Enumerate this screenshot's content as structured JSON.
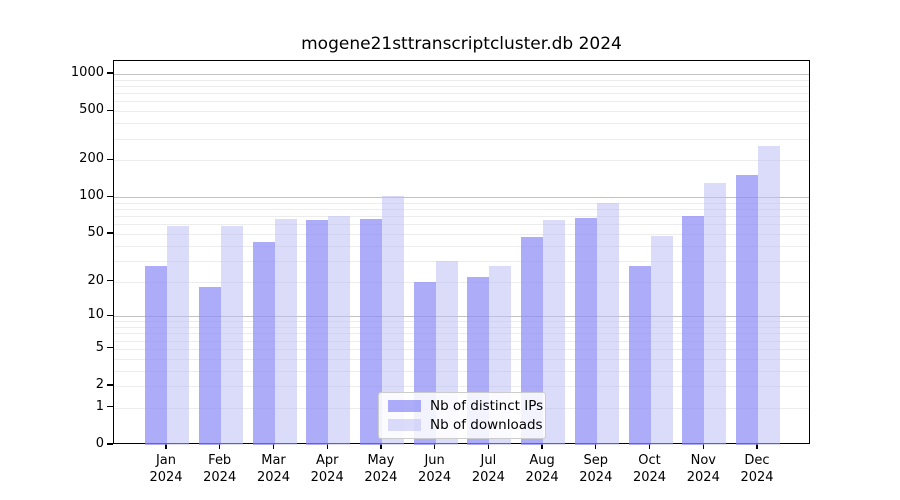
{
  "figure": {
    "background": "#ffffff",
    "axes_border_color": "#000000"
  },
  "chart_data": {
    "type": "bar",
    "title": "mogene21sttranscriptcluster.db 2024",
    "year_label": "2024",
    "categories": [
      "Jan",
      "Feb",
      "Mar",
      "Apr",
      "May",
      "Jun",
      "Jul",
      "Aug",
      "Sep",
      "Oct",
      "Nov",
      "Dec"
    ],
    "series": [
      {
        "name": "Nb of distinct IPs",
        "color": "rgba(140,140,246,0.72)",
        "values": [
          27,
          18,
          43,
          65,
          66,
          20,
          22,
          47,
          68,
          27,
          70,
          152
        ]
      },
      {
        "name": "Nb of downloads",
        "color": "rgba(190,190,245,0.55)",
        "values": [
          58,
          58,
          66,
          70,
          102,
          30,
          27,
          65,
          90,
          48,
          130,
          260
        ]
      }
    ],
    "xlabel": "",
    "ylabel": "",
    "y_axis": {
      "scale": "log10(1+y)",
      "ticks": [
        0,
        1,
        2,
        5,
        10,
        20,
        50,
        100,
        200,
        500,
        1000
      ],
      "top_value": 1280
    },
    "grid": {
      "minor_color": "#ececec",
      "major_color": "#c2c2c2",
      "major_lines": [
        10,
        100,
        1000
      ]
    },
    "legend_position": "bottom-center-inside"
  }
}
